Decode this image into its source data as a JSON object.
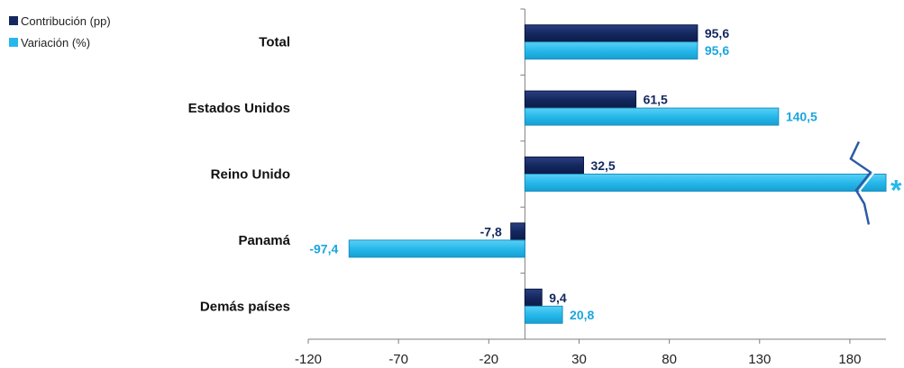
{
  "chart_data": {
    "type": "bar",
    "orientation": "horizontal",
    "categories": [
      "Total",
      "Estados Unidos",
      "Reino Unido",
      "Panamá",
      "Demás países"
    ],
    "series": [
      {
        "name": "Contribución (pp)",
        "values": [
          95.6,
          61.5,
          32.5,
          -7.8,
          9.4
        ],
        "labels": [
          "95,6",
          "61,5",
          "32,5",
          "-7,8",
          "9,4"
        ],
        "color": "#14285f",
        "label_color": "#14285f"
      },
      {
        "name": "Variación (%)",
        "values": [
          95.6,
          140.5,
          null,
          -97.4,
          20.8
        ],
        "labels": [
          "95,6",
          "140,5",
          "",
          "-97,4",
          "20,8"
        ],
        "color": "#27b8ea",
        "label_color": "#1aa6de"
      }
    ],
    "truncated_marker": "*",
    "xlim": [
      -120,
      200
    ],
    "xticks": [
      -120,
      -70,
      -20,
      30,
      80,
      130,
      180
    ],
    "xtick_labels": [
      "-120",
      "-70",
      "-20",
      "30",
      "80",
      "130",
      "180"
    ],
    "legend_position": "top-left",
    "grid": false
  }
}
